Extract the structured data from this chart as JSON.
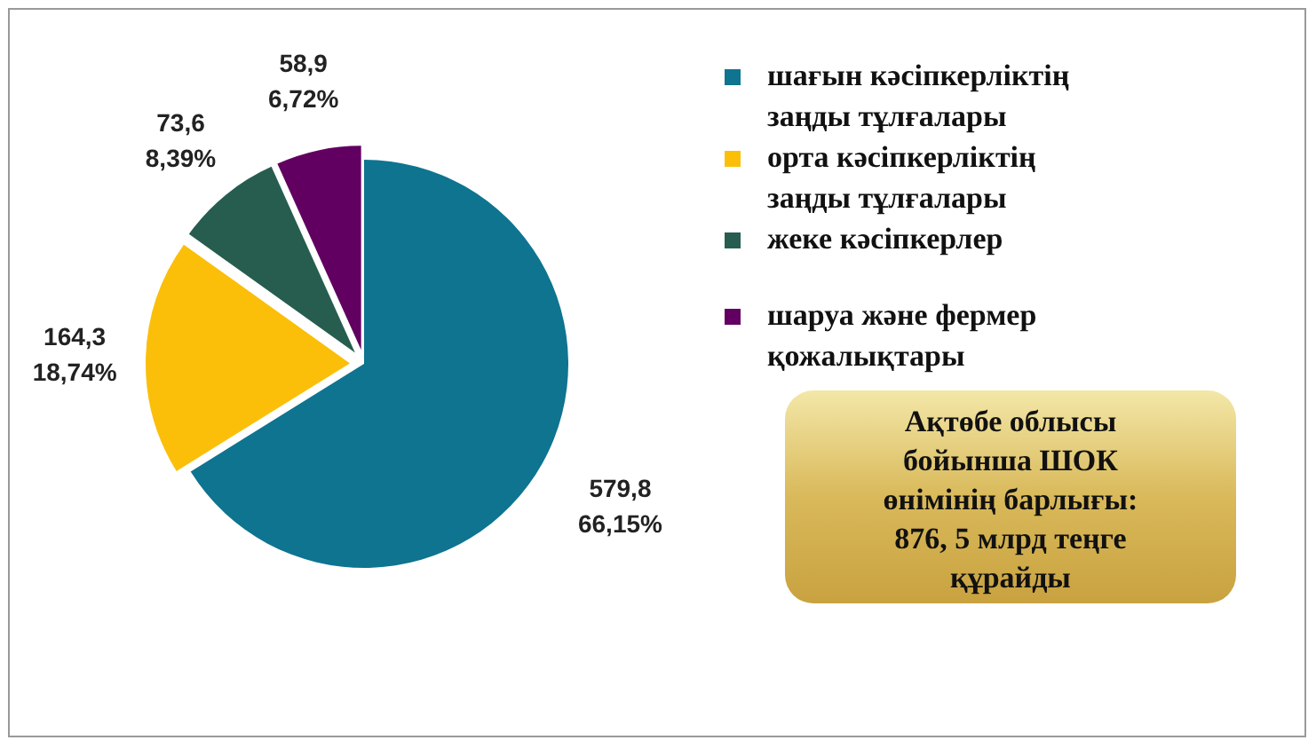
{
  "chart_data": {
    "type": "pie",
    "categories": [
      "шағын кәсіпкерліктің заңды тұлғалары",
      "орта кәсіпкерліктің заңды тұлғалары",
      "жеке кәсіпкерлер",
      "шаруа және фермер қожалықтары"
    ],
    "values": [
      579.8,
      164.3,
      73.6,
      58.9
    ],
    "colors": [
      "#0e7490",
      "#fbbf0a",
      "#265d4f",
      "#610060"
    ],
    "value_labels": [
      "579,8\n66,15%",
      "164,3\n18,74%",
      "73,6\n8,39%",
      "58,9\n6,72%"
    ],
    "legend": "right",
    "annotations": [
      "Ақтөбе облысы бойынша ШОК өнімінің барлығы: 876, 5  млрд теңге құрайды"
    ]
  }
}
